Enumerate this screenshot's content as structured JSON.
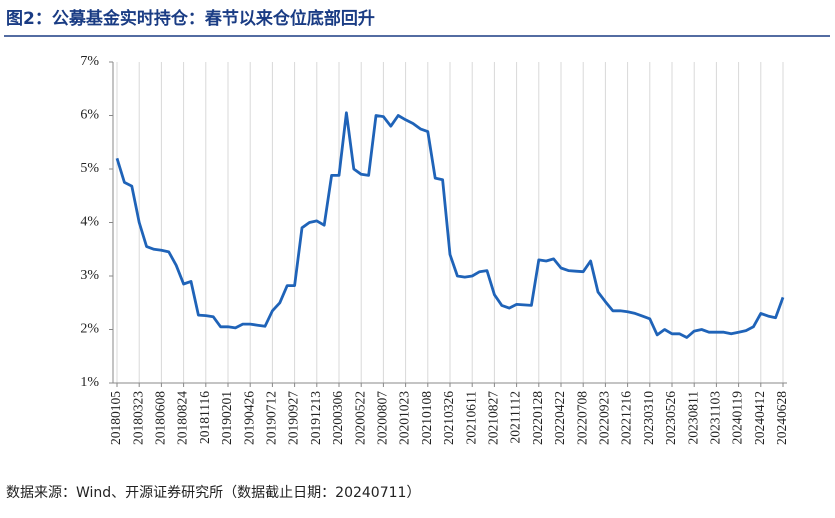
{
  "chart_data": {
    "type": "line",
    "title": "图2：公募基金实时持仓：春节以来仓位底部回升",
    "source": "数据来源：Wind、开源证券研究所（数据截止日期：20240711）",
    "categories": [
      "20180105",
      null,
      null,
      "20180323",
      null,
      null,
      "20180608",
      null,
      null,
      "20180824",
      null,
      null,
      "20181116",
      null,
      null,
      "20190201",
      null,
      null,
      "20190426",
      null,
      null,
      "20190712",
      null,
      null,
      "20190927",
      null,
      null,
      "20191213",
      null,
      null,
      "20200306",
      null,
      null,
      "20200522",
      null,
      null,
      "20200807",
      null,
      null,
      "20201023",
      null,
      null,
      "20210108",
      null,
      null,
      "20210326",
      null,
      null,
      "20210611",
      null,
      null,
      "20210827",
      null,
      null,
      "20211112",
      null,
      null,
      "20220128",
      null,
      null,
      "20220422",
      null,
      null,
      "20220708",
      null,
      null,
      "20220923",
      null,
      null,
      "20221216",
      null,
      null,
      "20230310",
      null,
      null,
      "20230526",
      null,
      null,
      "20230811",
      null,
      null,
      "20231103",
      null,
      null,
      "20240119",
      null,
      null,
      "20240412",
      null,
      null,
      "20240628"
    ],
    "values": [
      5.2,
      4.75,
      4.68,
      4.0,
      3.55,
      3.5,
      3.48,
      3.45,
      3.2,
      2.85,
      2.9,
      2.27,
      2.26,
      2.24,
      2.05,
      2.05,
      2.03,
      2.1,
      2.1,
      2.08,
      2.06,
      2.35,
      2.5,
      2.82,
      2.82,
      3.9,
      4.0,
      4.03,
      3.95,
      4.88,
      4.88,
      6.05,
      5.0,
      4.9,
      4.88,
      6.0,
      5.98,
      5.8,
      6.0,
      5.92,
      5.85,
      5.75,
      5.7,
      4.83,
      4.8,
      3.4,
      3.0,
      2.98,
      3.0,
      3.08,
      3.1,
      2.65,
      2.45,
      2.4,
      2.47,
      2.46,
      2.45,
      3.3,
      3.28,
      3.32,
      3.15,
      3.1,
      3.09,
      3.08,
      3.28,
      2.7,
      2.52,
      2.35,
      2.35,
      2.33,
      2.3,
      2.25,
      2.2,
      1.9,
      2.0,
      1.92,
      1.92,
      1.85,
      1.97,
      2.0,
      1.95,
      1.95,
      1.95,
      1.92,
      1.95,
      1.98,
      2.05,
      2.3,
      2.25,
      2.22,
      2.6
    ],
    "color": "#1f63b8",
    "ylim": [
      1,
      7
    ],
    "yticks": [
      {
        "value": 1,
        "label": "1%"
      },
      {
        "value": 2,
        "label": "2%"
      },
      {
        "value": 3,
        "label": "3%"
      },
      {
        "value": 4,
        "label": "4%"
      },
      {
        "value": 5,
        "label": "5%"
      },
      {
        "value": 6,
        "label": "6%"
      },
      {
        "value": 7,
        "label": "7%"
      }
    ],
    "grid": "x"
  }
}
